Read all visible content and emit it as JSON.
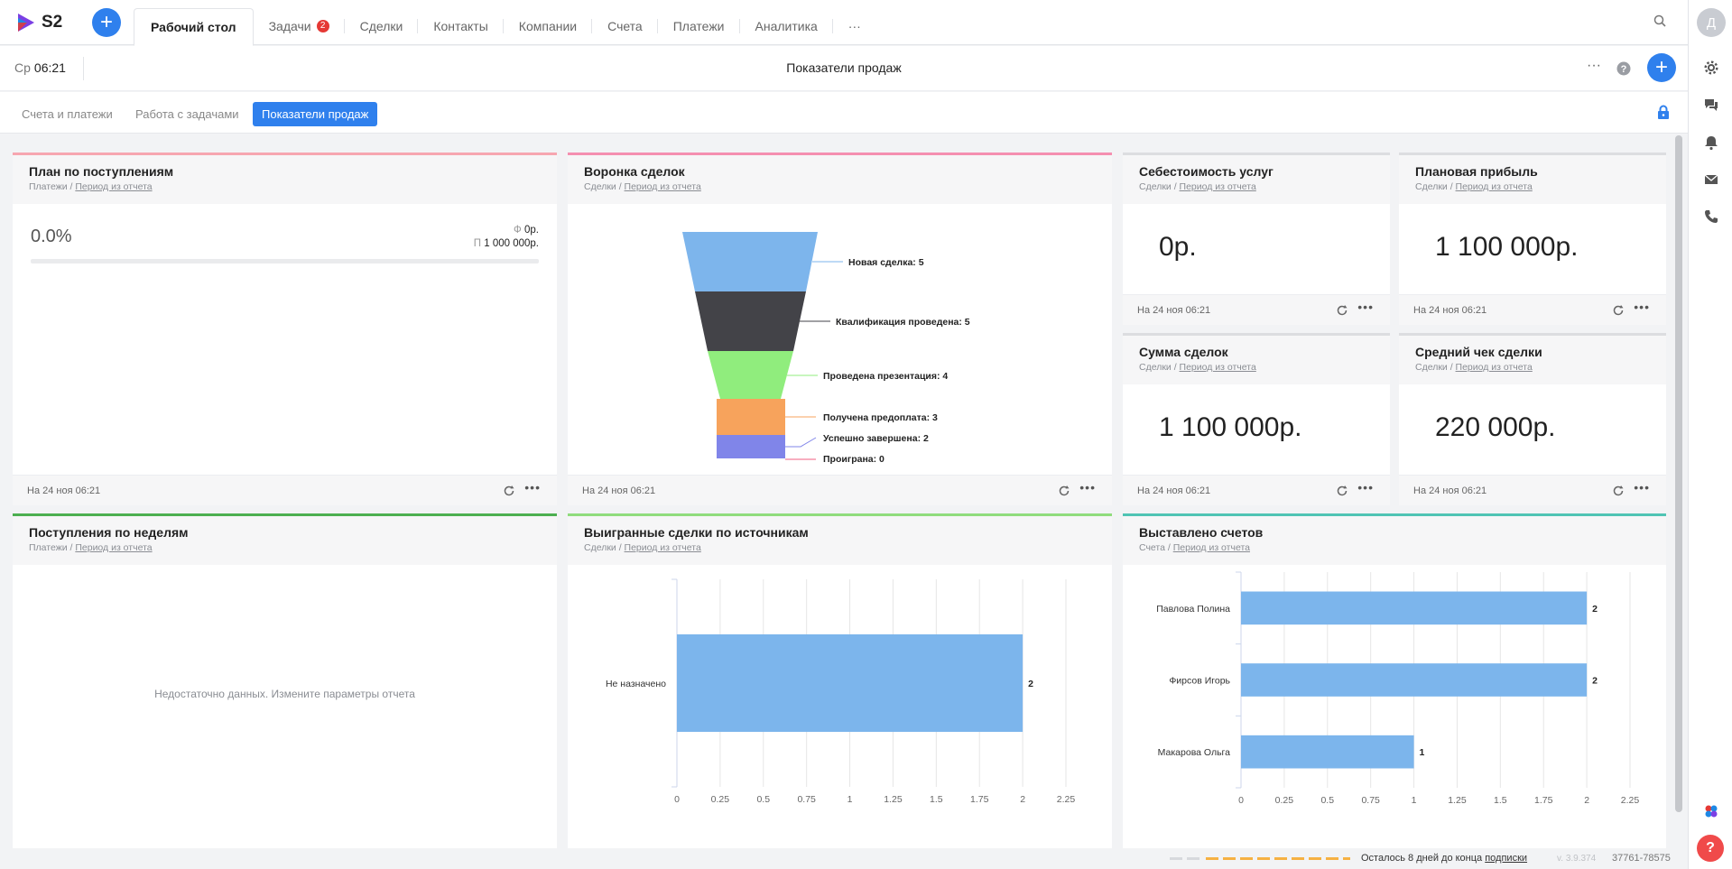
{
  "app": {
    "logo_text": "S2"
  },
  "nav": {
    "tabs": [
      {
        "label": "Рабочий стол"
      },
      {
        "label": "Задачи",
        "badge": "2"
      },
      {
        "label": "Сделки"
      },
      {
        "label": "Контакты"
      },
      {
        "label": "Компании"
      },
      {
        "label": "Счета"
      },
      {
        "label": "Платежи"
      },
      {
        "label": "Аналитика"
      },
      {
        "label": "···"
      }
    ]
  },
  "user": {
    "avatar_letter": "Д"
  },
  "header": {
    "day": "Ср",
    "time": "06:21",
    "title": "Показатели продаж"
  },
  "subtabs": [
    {
      "label": "Счета и платежи"
    },
    {
      "label": "Работа с задачами"
    },
    {
      "label": "Показатели продаж"
    }
  ],
  "widgets": {
    "plan": {
      "title": "План по поступлениям",
      "source": "Платежи / ",
      "period": "Период из отчета",
      "percent": "0.0%",
      "fact_label": "Ф",
      "fact_value": "0р.",
      "plan_label": "П",
      "plan_value": "1 000 000р.",
      "progress_fraction": 0,
      "date": "На 24 ноя 06:21"
    },
    "funnel": {
      "title": "Воронка сделок",
      "source": "Сделки / ",
      "period": "Период из отчета",
      "date": "На 24 ноя 06:21",
      "stages": [
        {
          "label": "Новая сделка: 5",
          "color": "#7db5ec"
        },
        {
          "label": "Квалификация проведена: 5",
          "color": "#434348"
        },
        {
          "label": "Проведена презентация: 4",
          "color": "#90ed7d"
        },
        {
          "label": "Получена предоплата: 3",
          "color": "#f7a35c"
        },
        {
          "label": "Успешно завершена: 2",
          "color": "#8085e9"
        },
        {
          "label": "Проиграна: 0",
          "color": "#f15c80"
        }
      ]
    },
    "cost": {
      "title": "Себестоимость услуг",
      "source": "Сделки / ",
      "period": "Период из отчета",
      "value": "0р.",
      "date": "На 24 ноя 06:21"
    },
    "profit": {
      "title": "Плановая прибыль",
      "source": "Сделки / ",
      "period": "Период из отчета",
      "value": "1 100 000р.",
      "date": "На 24 ноя 06:21"
    },
    "deals_sum": {
      "title": "Сумма сделок",
      "source": "Сделки / ",
      "period": "Период из отчета",
      "value": "1 100 000р.",
      "date": "На 24 ноя 06:21"
    },
    "avg_check": {
      "title": "Средний чек сделки",
      "source": "Сделки / ",
      "period": "Период из отчета",
      "value": "220 000р.",
      "date": "На 24 ноя 06:21"
    },
    "weekly": {
      "title": "Поступления по неделям",
      "source": "Платежи / ",
      "period": "Период из отчета",
      "empty_text": "Недостаточно данных. Измените параметры отчета"
    },
    "won_sources": {
      "title": "Выигранные сделки по источникам",
      "source": "Сделки / ",
      "period": "Период из отчета"
    },
    "invoices": {
      "title": "Выставлено счетов",
      "source": "Счета / ",
      "period": "Период из отчета"
    }
  },
  "chart_data": [
    {
      "type": "bar",
      "orientation": "horizontal",
      "categories": [
        "Не назначено"
      ],
      "values": [
        2
      ],
      "xlim": [
        0,
        2.25
      ],
      "ticks": [
        "0",
        "0.25",
        "0.5",
        "0.75",
        "1",
        "1.25",
        "1.5",
        "1.75",
        "2",
        "2.25"
      ],
      "color": "#7cb5ec",
      "grid": true
    },
    {
      "type": "bar",
      "orientation": "horizontal",
      "categories": [
        "Павлова Полина",
        "Фирсов Игорь",
        "Макарова Ольга"
      ],
      "values": [
        2,
        2,
        1
      ],
      "xlim": [
        0,
        2.25
      ],
      "ticks": [
        "0",
        "0.25",
        "0.5",
        "0.75",
        "1",
        "1.25",
        "1.5",
        "1.75",
        "2",
        "2.25"
      ],
      "color": "#7cb5ec",
      "grid": true
    }
  ],
  "status": {
    "days_left_text": "Осталось 8 дней до конца ",
    "subscription_link": "подписки",
    "version": "v. 3.9.374",
    "account": "37761-78575"
  }
}
